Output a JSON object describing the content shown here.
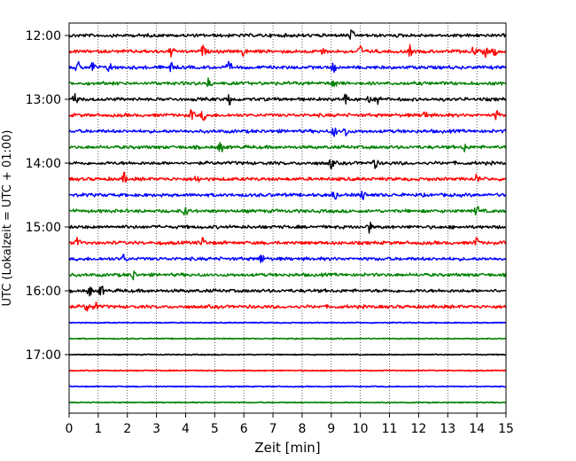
{
  "chart_data": {
    "type": "line",
    "title": "",
    "xlabel": "Zeit  [min]",
    "ylabel": "UTC (Lokalzeit = UTC + 01:00)",
    "xlim": [
      0,
      15
    ],
    "x_ticks": [
      "0",
      "1",
      "2",
      "3",
      "4",
      "5",
      "6",
      "7",
      "8",
      "9",
      "10",
      "11",
      "12",
      "13",
      "14",
      "15"
    ],
    "y_ticks": [
      "12:00",
      "13:00",
      "14:00",
      "15:00",
      "16:00",
      "17:00"
    ],
    "grid": "vertical dotted at each minute",
    "trace_colors": [
      "#000000",
      "#ff0000",
      "#0000ff",
      "#008000"
    ],
    "traces": [
      {
        "start": "12:00",
        "events": [
          9.7
        ]
      },
      {
        "start": "12:15",
        "events": [
          3.5,
          4.6,
          6.0,
          8.7,
          10.0,
          11.7,
          13.9,
          14.3,
          14.6
        ]
      },
      {
        "start": "12:30",
        "events": [
          0.3,
          0.8,
          1.4,
          3.5,
          5.5,
          9.1
        ]
      },
      {
        "start": "12:45",
        "events": [
          4.8,
          9.1
        ]
      },
      {
        "start": "13:00",
        "events": [
          0.2,
          5.5,
          9.5,
          10.3,
          10.6
        ]
      },
      {
        "start": "13:15",
        "events": [
          4.2,
          4.6,
          12.2,
          14.7
        ]
      },
      {
        "start": "13:30",
        "events": [
          9.1,
          9.5
        ]
      },
      {
        "start": "13:45",
        "events": [
          5.2,
          13.6
        ]
      },
      {
        "start": "14:00",
        "events": [
          9.0,
          10.5
        ]
      },
      {
        "start": "14:15",
        "events": [
          1.9,
          4.4,
          14.0
        ]
      },
      {
        "start": "14:30",
        "events": [
          9.1,
          10.1
        ]
      },
      {
        "start": "14:45",
        "events": [
          4.0,
          14.0
        ]
      },
      {
        "start": "15:00",
        "events": [
          10.3
        ]
      },
      {
        "start": "15:15",
        "events": [
          0.3,
          4.6,
          14.0
        ]
      },
      {
        "start": "15:30",
        "events": [
          1.9,
          6.6
        ]
      },
      {
        "start": "15:45",
        "events": [
          2.2
        ]
      },
      {
        "start": "16:00",
        "events": [
          0.7,
          1.1
        ]
      },
      {
        "start": "16:15",
        "events": [
          0.6,
          0.9
        ]
      },
      {
        "start": "16:30",
        "events": []
      },
      {
        "start": "16:45",
        "events": []
      },
      {
        "start": "17:00",
        "events": []
      },
      {
        "start": "17:15",
        "events": []
      },
      {
        "start": "17:30",
        "events": []
      },
      {
        "start": "17:45",
        "events": []
      }
    ]
  }
}
